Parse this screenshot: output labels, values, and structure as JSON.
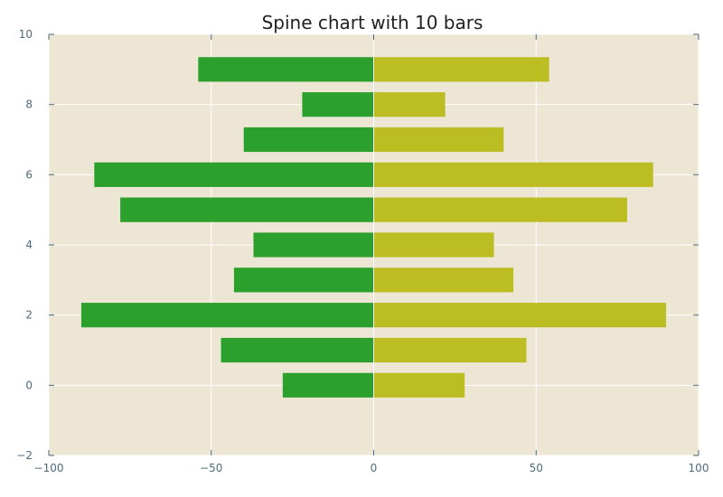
{
  "chart_data": {
    "type": "bar",
    "orientation": "horizontal",
    "title": "Spine chart with 10 bars",
    "xlabel": "",
    "ylabel": "",
    "xlim": [
      -100,
      100
    ],
    "ylim": [
      -2,
      10
    ],
    "xticks": [
      -100,
      -50,
      0,
      50,
      100
    ],
    "yticks": [
      -2,
      0,
      2,
      4,
      6,
      8,
      10
    ],
    "x_tick_labels": [
      "−100",
      "−50",
      "0",
      "50",
      "100"
    ],
    "y_tick_labels": [
      "−2",
      "0",
      "2",
      "4",
      "6",
      "8",
      "10"
    ],
    "grid": true,
    "categories": [
      0,
      1,
      2,
      3,
      4,
      5,
      6,
      7,
      8,
      9
    ],
    "series": [
      {
        "values": [
          -28,
          -47,
          -90,
          -43,
          -37,
          -78,
          -86,
          -40,
          -22,
          -54
        ],
        "color": "#2ca02c"
      },
      {
        "values": [
          28,
          47,
          90,
          43,
          37,
          78,
          86,
          40,
          22,
          54
        ],
        "color": "#bcbd22"
      }
    ],
    "background_color": "#ede6d5",
    "grid_color": "#ffffff",
    "tick_color": "#4d6b7a"
  }
}
